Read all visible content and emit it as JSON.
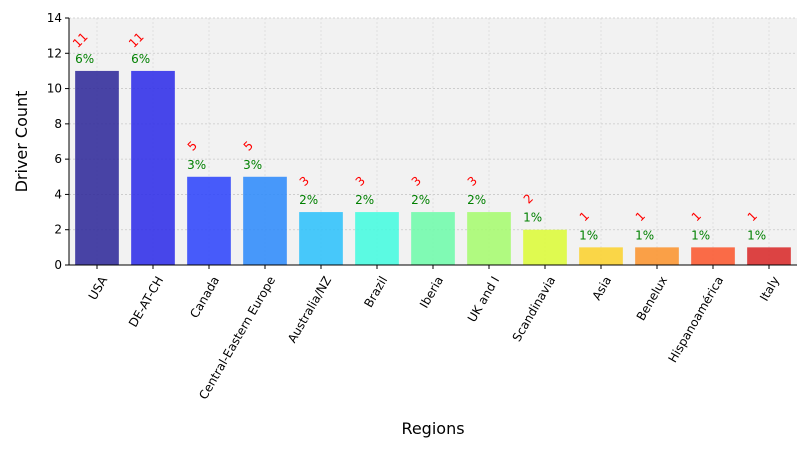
{
  "chart_data": {
    "type": "bar",
    "title": "",
    "xlabel": "Regions",
    "ylabel": "Driver Count",
    "ylim": [
      0,
      14
    ],
    "yticks": [
      0,
      2,
      4,
      6,
      8,
      10,
      12,
      14
    ],
    "grid": true,
    "categories": [
      "USA",
      "DE-AT-CH",
      "Canada",
      "Central-Eastern Europe",
      "Australia/NZ",
      "Brazil",
      "Iberia",
      "UK and I",
      "Scandinavia",
      "Asia",
      "Benelux",
      "Hispanoamérica",
      "Italy"
    ],
    "values": [
      11,
      11,
      5,
      5,
      3,
      3,
      3,
      3,
      2,
      1,
      1,
      1,
      1
    ],
    "count_labels": [
      "11",
      "11",
      "5",
      "5",
      "3",
      "3",
      "3",
      "3",
      "2",
      "1",
      "1",
      "1",
      "1"
    ],
    "percent_labels": [
      "6%",
      "6%",
      "3%",
      "3%",
      "2%",
      "2%",
      "2%",
      "2%",
      "1%",
      "1%",
      "1%",
      "1%",
      "1%"
    ],
    "colors": [
      "#302a9a",
      "#2f2ee8",
      "#2f45fb",
      "#2f8bfb",
      "#2fc1fb",
      "#45fbdf",
      "#70fbab",
      "#a6fb70",
      "#dcfb39",
      "#fbd22f",
      "#fb942f",
      "#fb582f",
      "#d82a2a"
    ],
    "count_label_color": "#ff0000",
    "percent_label_color": "#008000"
  }
}
